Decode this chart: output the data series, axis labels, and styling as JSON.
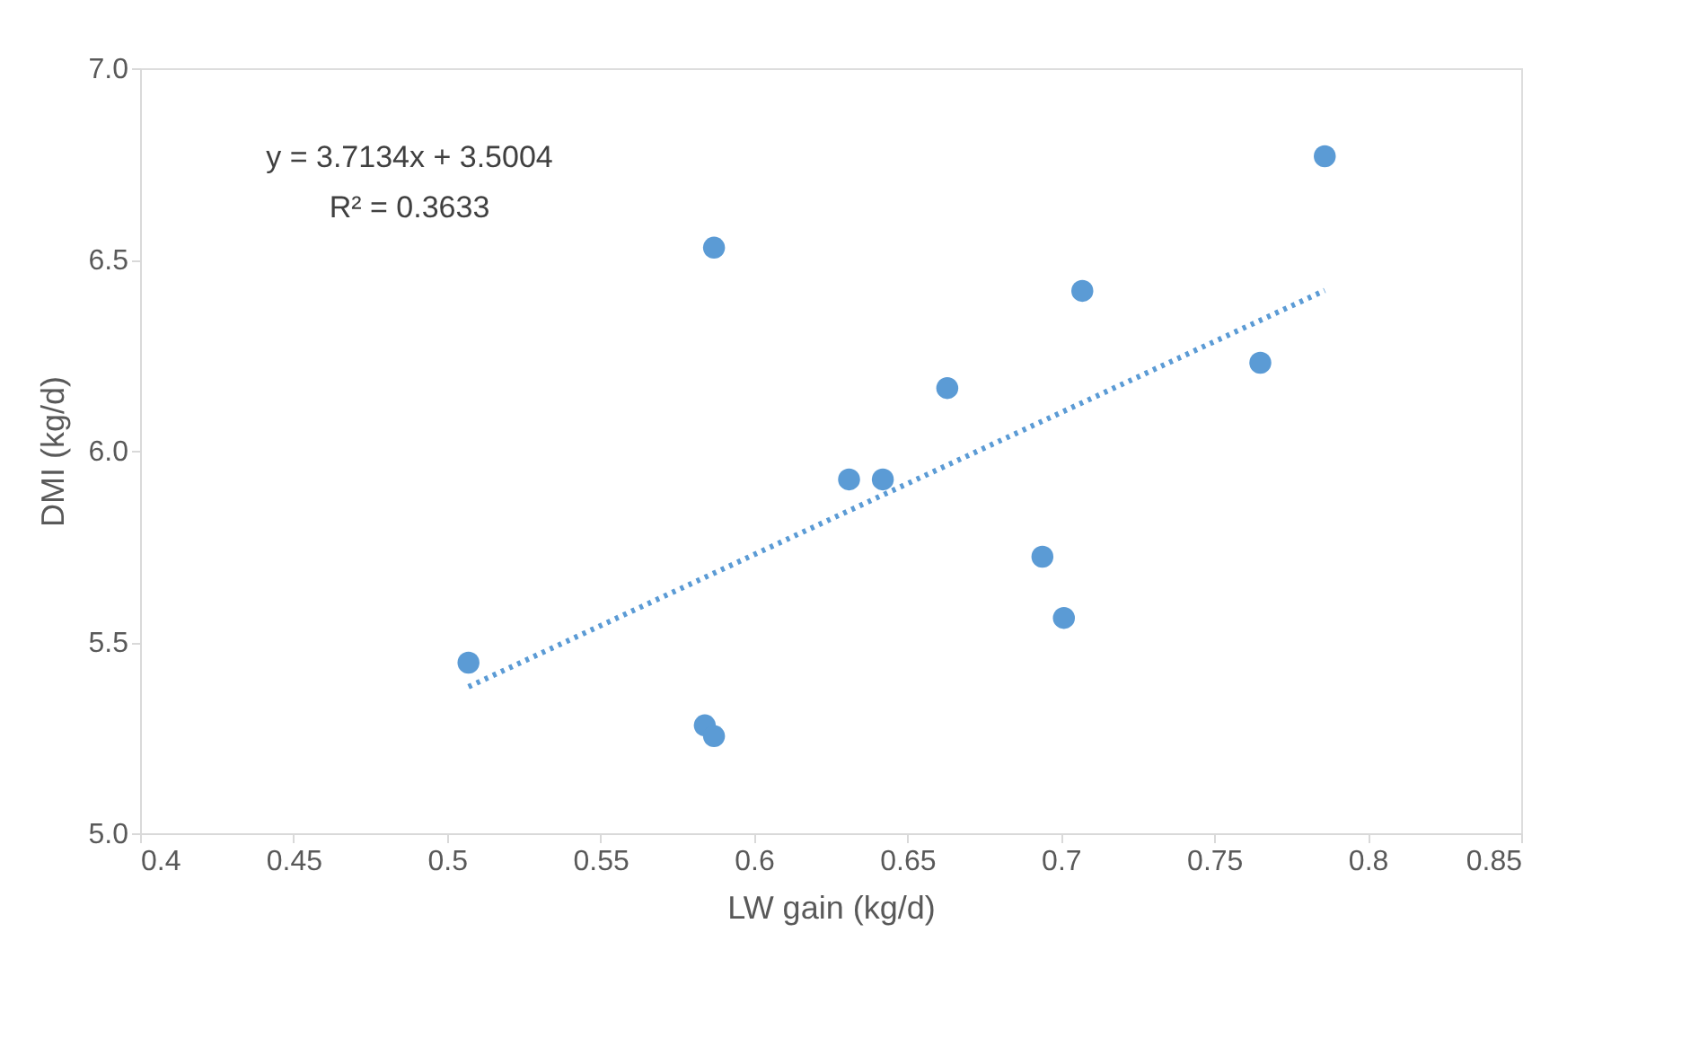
{
  "chart_data": {
    "type": "scatter",
    "xlabel": "LW gain (kg/d)",
    "ylabel": "DMI (kg/d)",
    "xlim": [
      0.4,
      0.85
    ],
    "xticks": [
      0.4,
      0.45,
      0.5,
      0.55,
      0.6,
      0.65,
      0.7,
      0.75,
      0.8,
      0.85
    ],
    "ylim": [
      5.0,
      7.0
    ],
    "yticks": [
      {
        "value": 5.0,
        "label": "5.0"
      },
      {
        "value": 5.5,
        "label": "5.5"
      },
      {
        "value": 6.0,
        "label": "6.0"
      },
      {
        "value": 6.5,
        "label": "6.5"
      },
      {
        "value": 7.0,
        "label": "7.0"
      }
    ],
    "grid": false,
    "marker": "circle",
    "annotations": [
      "y = 3.7134x + 3.5004",
      "R² = 0.3633"
    ],
    "series": [
      {
        "color": "#5b9bd5",
        "x": [
          0.507,
          0.584,
          0.587,
          0.587,
          0.631,
          0.642,
          0.663,
          0.694,
          0.701,
          0.707,
          0.765,
          0.786
        ],
        "values": [
          5.446,
          5.282,
          5.254,
          6.531,
          5.925,
          5.925,
          6.164,
          5.723,
          5.563,
          6.418,
          6.23,
          6.77
        ]
      },
      {
        "type": "line",
        "color": "#5b9bd5",
        "line_style": "dotted",
        "marker": "none",
        "x": [
          0.507,
          0.786
        ],
        "values": [
          5.383,
          6.419
        ]
      }
    ]
  }
}
